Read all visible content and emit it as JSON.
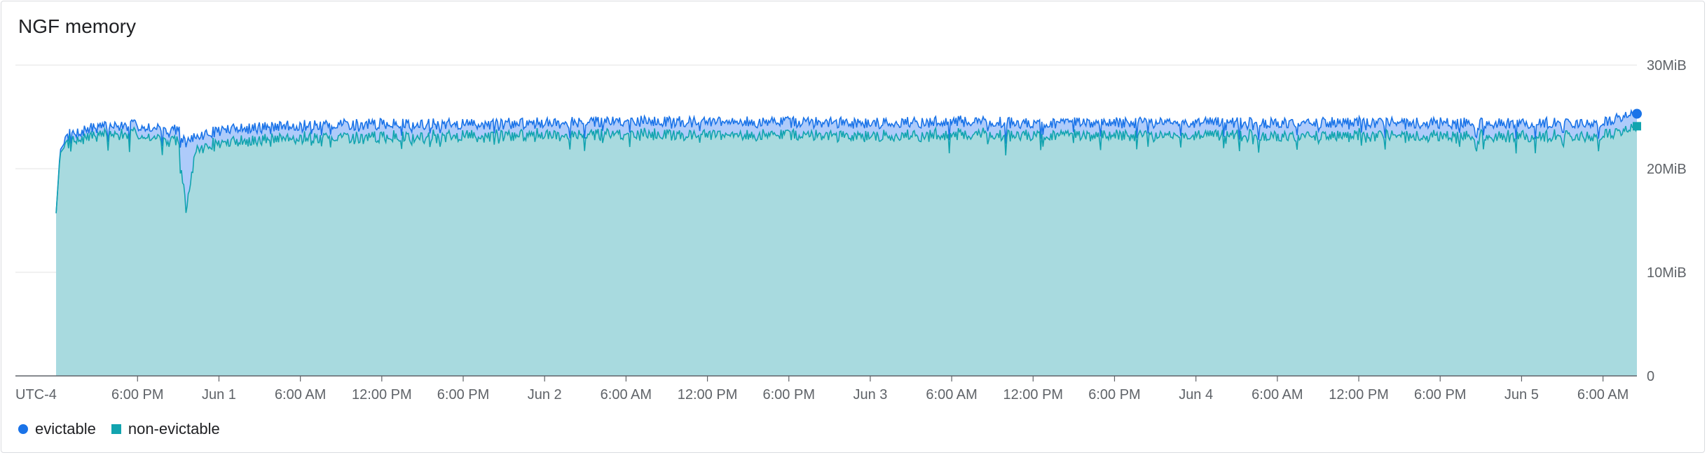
{
  "chart": {
    "title": "NGF memory"
  },
  "chart_data": {
    "type": "area",
    "title": "NGF memory",
    "timezone_label": "UTC-4",
    "x_tick_labels": [
      "6:00 PM",
      "Jun 1",
      "6:00 AM",
      "12:00 PM",
      "6:00 PM",
      "Jun 2",
      "6:00 AM",
      "12:00 PM",
      "6:00 PM",
      "Jun 3",
      "6:00 AM",
      "12:00 PM",
      "6:00 PM",
      "Jun 4",
      "6:00 AM",
      "12:00 PM",
      "6:00 PM",
      "Jun 5",
      "6:00 AM"
    ],
    "x_tick_hours": [
      18,
      24,
      30,
      36,
      42,
      48,
      54,
      60,
      66,
      72,
      78,
      84,
      90,
      96,
      102,
      108,
      114,
      120,
      126
    ],
    "x_range_hours": [
      9,
      128.5
    ],
    "y_tick_labels": [
      "0",
      "10MiB",
      "20MiB",
      "30MiB"
    ],
    "y_ticks": [
      0,
      10,
      20,
      30
    ],
    "ylim": [
      0,
      30
    ],
    "y_unit": "MiB",
    "grid": true,
    "legend_position": "bottom-left",
    "series": [
      {
        "name": "evictable",
        "color": "#1a73e8",
        "fill": "#aecbfa",
        "marker": "circle",
        "x_hours": [
          12.0,
          12.3,
          13.0,
          15,
          18,
          21,
          21.6,
          22.3,
          24,
          30,
          36,
          42,
          48,
          54,
          60,
          66,
          72,
          78,
          84,
          90,
          96,
          102,
          108,
          114,
          120,
          126,
          128.5
        ],
        "values": [
          15.7,
          21.8,
          23.3,
          24.0,
          24.2,
          23.8,
          22.5,
          23.0,
          23.7,
          24.2,
          24.3,
          24.3,
          24.4,
          24.6,
          24.5,
          24.5,
          24.4,
          24.6,
          24.4,
          24.4,
          24.5,
          24.4,
          24.5,
          24.4,
          24.4,
          24.4,
          25.3
        ]
      },
      {
        "name": "non-evictable",
        "color": "#12a4af",
        "fill": "#a8dadf",
        "marker": "square",
        "x_hours": [
          12.0,
          12.3,
          13.0,
          15,
          18,
          21,
          21.6,
          22.3,
          24,
          30,
          36,
          42,
          48,
          54,
          60,
          66,
          72,
          78,
          84,
          90,
          96,
          102,
          108,
          114,
          120,
          126,
          128.5
        ],
        "values": [
          15.7,
          21.5,
          22.8,
          23.4,
          23.5,
          23.0,
          16.1,
          22.0,
          22.6,
          23.2,
          23.2,
          23.3,
          23.4,
          23.5,
          23.4,
          23.4,
          23.3,
          23.5,
          23.4,
          23.3,
          23.4,
          23.3,
          23.4,
          23.3,
          23.3,
          23.3,
          24.1
        ]
      }
    ]
  }
}
